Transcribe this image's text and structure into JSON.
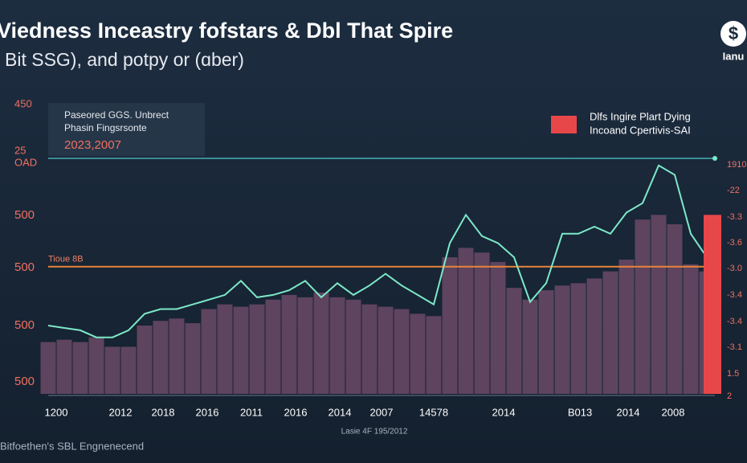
{
  "chart_data": {
    "type": "bar-line",
    "title": "Viedness Inceastry fofstars  & Dbl That Spire",
    "subtitle": "Bit SSG), and potpy or (ɑber)",
    "badge_symbol": "$",
    "badge_label": "Ianu",
    "annotation": {
      "lines": [
        "Paseored GGS. Unbrect",
        "Phasin Fingsrsonte"
      ],
      "highlight": "2023,2007"
    },
    "legend": [
      "Dlfs Ingire Plart Dying",
      "Incoand Cpertivis-SAI"
    ],
    "left_axis_labels": [
      "450",
      "25",
      "OAD",
      "500",
      "500",
      "500",
      "500"
    ],
    "right_axis_labels": [
      "1910",
      "-22",
      "-3.3",
      "-3.6",
      "-3.0",
      "-3.4",
      "-3.4",
      "-3.1",
      "1.5",
      "2"
    ],
    "x_labels": [
      "1200",
      "2012",
      "2018",
      "2016",
      "2011",
      "2016",
      "2014",
      "2007",
      "14578",
      "2014",
      "B013",
      "2014",
      "2008"
    ],
    "x_axis_note": "Lasie 4F 195/2012",
    "footer": "Bitfoethen's SBL Engnenecend",
    "reference_line": {
      "label": "Tioue 8B",
      "value": 54,
      "color": "#e8833a"
    },
    "ylim": [
      0,
      100
    ],
    "series": [
      {
        "name": "Dlfs Ingire Plart Dying",
        "kind": "bar",
        "color": "#6b4a66",
        "values": [
          22,
          23,
          22,
          24,
          20,
          20,
          29,
          31,
          32,
          30,
          36,
          38,
          37,
          38,
          40,
          42,
          41,
          43,
          41,
          40,
          38,
          37,
          36,
          34,
          33,
          58,
          62,
          60,
          56,
          45,
          40,
          44,
          46,
          47,
          49,
          52,
          57,
          74,
          76,
          72,
          55,
          52
        ]
      },
      {
        "name": "Incoand Cpertivis-SAI",
        "kind": "line",
        "color": "#7de8c8",
        "values": [
          29,
          28,
          27,
          24,
          24,
          27,
          34,
          36,
          36,
          38,
          40,
          42,
          48,
          41,
          42,
          44,
          48,
          41,
          47,
          42,
          46,
          51,
          46,
          42,
          38,
          64,
          76,
          67,
          64,
          58,
          39,
          47,
          68,
          68,
          71,
          68,
          77,
          81,
          97,
          93,
          68,
          58
        ]
      }
    ],
    "highlight_bar": {
      "value": 76,
      "color": "#e8474a"
    }
  }
}
